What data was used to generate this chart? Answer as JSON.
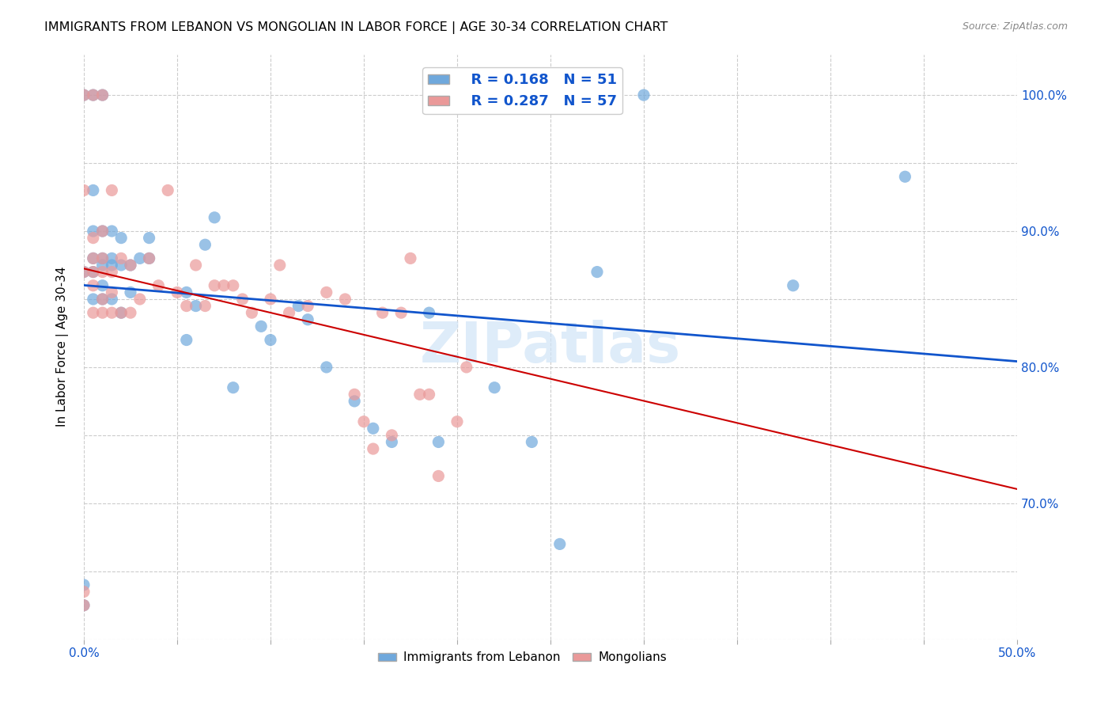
{
  "title": "IMMIGRANTS FROM LEBANON VS MONGOLIAN IN LABOR FORCE | AGE 30-34 CORRELATION CHART",
  "source": "Source: ZipAtlas.com",
  "xlabel_label": "",
  "ylabel_label": "In Labor Force | Age 30-34",
  "xlim": [
    0.0,
    0.5
  ],
  "ylim": [
    0.6,
    1.03
  ],
  "xticks": [
    0.0,
    0.05,
    0.1,
    0.15,
    0.2,
    0.25,
    0.3,
    0.35,
    0.4,
    0.45,
    0.5
  ],
  "yticks": [
    0.6,
    0.65,
    0.7,
    0.75,
    0.8,
    0.85,
    0.9,
    0.95,
    1.0
  ],
  "xtick_labels": [
    "0.0%",
    "",
    "",
    "",
    "",
    "",
    "",
    "",
    "",
    "",
    "50.0%"
  ],
  "ytick_labels": [
    "",
    "",
    "70.0%",
    "",
    "80.0%",
    "",
    "90.0%",
    "",
    "100.0%"
  ],
  "blue_color": "#6fa8dc",
  "pink_color": "#ea9999",
  "blue_line_color": "#1155cc",
  "pink_line_color": "#cc0000",
  "legend_R1": "R = 0.168",
  "legend_N1": "N = 51",
  "legend_R2": "R = 0.287",
  "legend_N2": "N = 57",
  "watermark": "ZIPatlas",
  "blue_scatter_x": [
    0.0,
    0.0,
    0.0,
    0.0,
    0.005,
    0.005,
    0.005,
    0.005,
    0.005,
    0.005,
    0.01,
    0.01,
    0.01,
    0.01,
    0.01,
    0.01,
    0.015,
    0.015,
    0.015,
    0.015,
    0.02,
    0.02,
    0.02,
    0.025,
    0.025,
    0.03,
    0.035,
    0.035,
    0.055,
    0.055,
    0.06,
    0.065,
    0.07,
    0.08,
    0.095,
    0.1,
    0.115,
    0.12,
    0.13,
    0.145,
    0.155,
    0.165,
    0.185,
    0.19,
    0.22,
    0.24,
    0.255,
    0.275,
    0.3,
    0.38,
    0.44
  ],
  "blue_scatter_y": [
    0.625,
    0.64,
    0.87,
    1.0,
    0.85,
    0.87,
    0.88,
    0.9,
    0.93,
    1.0,
    0.85,
    0.86,
    0.875,
    0.88,
    0.9,
    1.0,
    0.85,
    0.875,
    0.88,
    0.9,
    0.84,
    0.875,
    0.895,
    0.855,
    0.875,
    0.88,
    0.88,
    0.895,
    0.82,
    0.855,
    0.845,
    0.89,
    0.91,
    0.785,
    0.83,
    0.82,
    0.845,
    0.835,
    0.8,
    0.775,
    0.755,
    0.745,
    0.84,
    0.745,
    0.785,
    0.745,
    0.67,
    0.87,
    1.0,
    0.86,
    0.94
  ],
  "pink_scatter_x": [
    0.0,
    0.0,
    0.0,
    0.0,
    0.0,
    0.005,
    0.005,
    0.005,
    0.005,
    0.005,
    0.005,
    0.01,
    0.01,
    0.01,
    0.01,
    0.01,
    0.01,
    0.015,
    0.015,
    0.015,
    0.015,
    0.02,
    0.02,
    0.025,
    0.025,
    0.03,
    0.035,
    0.04,
    0.045,
    0.05,
    0.055,
    0.06,
    0.065,
    0.07,
    0.075,
    0.08,
    0.085,
    0.09,
    0.1,
    0.105,
    0.11,
    0.12,
    0.13,
    0.14,
    0.145,
    0.15,
    0.155,
    0.16,
    0.165,
    0.17,
    0.175,
    0.18,
    0.185,
    0.19,
    0.2,
    0.205,
    0.21
  ],
  "pink_scatter_y": [
    0.625,
    0.635,
    0.87,
    0.93,
    1.0,
    0.84,
    0.86,
    0.87,
    0.88,
    0.895,
    1.0,
    0.84,
    0.85,
    0.87,
    0.88,
    0.9,
    1.0,
    0.84,
    0.855,
    0.87,
    0.93,
    0.84,
    0.88,
    0.84,
    0.875,
    0.85,
    0.88,
    0.86,
    0.93,
    0.855,
    0.845,
    0.875,
    0.845,
    0.86,
    0.86,
    0.86,
    0.85,
    0.84,
    0.85,
    0.875,
    0.84,
    0.845,
    0.855,
    0.85,
    0.78,
    0.76,
    0.74,
    0.84,
    0.75,
    0.84,
    0.88,
    0.78,
    0.78,
    0.72,
    0.76,
    0.8,
    1.0
  ]
}
